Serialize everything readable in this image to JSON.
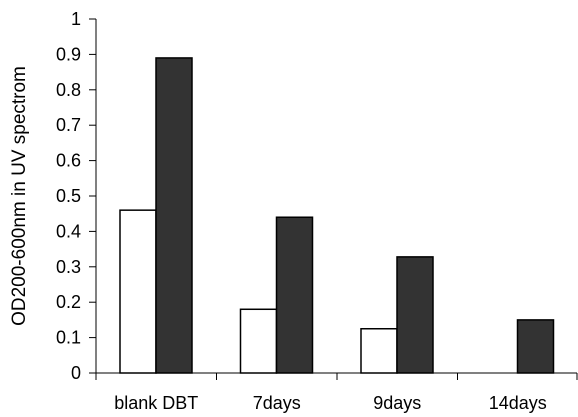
{
  "chart_data": {
    "type": "bar",
    "title": "",
    "xlabel": "",
    "ylabel": "OD200-600nm in UV spectrom",
    "categories": [
      "blank DBT",
      "7days",
      "9days",
      "14days"
    ],
    "series": [
      {
        "values": [
          0.46,
          0.18,
          0.125,
          null
        ],
        "color": "#ffffff"
      },
      {
        "values": [
          0.89,
          0.44,
          0.328,
          0.15
        ],
        "color": "#333333"
      }
    ],
    "ylim": [
      0,
      1
    ],
    "yticks": [
      0,
      0.1,
      0.2,
      0.3,
      0.4,
      0.5,
      0.6,
      0.7,
      0.8,
      0.9,
      1
    ],
    "ytick_labels": [
      "0",
      "0.1",
      "0.2",
      "0.3",
      "0.4",
      "0.5",
      "0.6",
      "0.7",
      "0.8",
      "0.9",
      "1"
    ],
    "grid": false,
    "legend": "none"
  }
}
